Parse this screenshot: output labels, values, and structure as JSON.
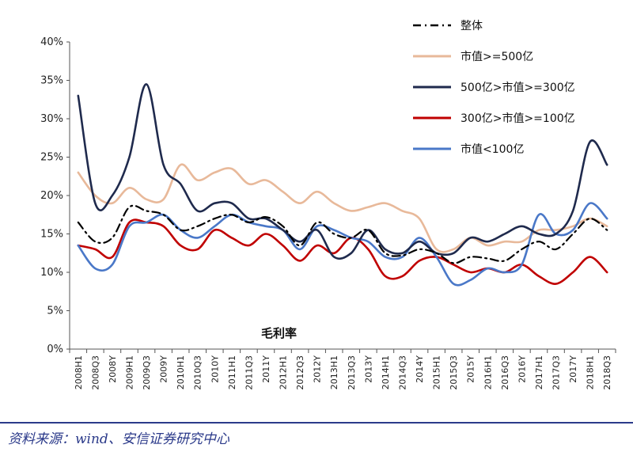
{
  "chart_data": {
    "type": "line",
    "title": "",
    "annotation": "毛利率",
    "xlabel": "",
    "ylabel": "",
    "ylim": [
      0,
      40
    ],
    "yticks": [
      "0%",
      "5%",
      "10%",
      "15%",
      "20%",
      "25%",
      "30%",
      "35%",
      "40%"
    ],
    "grid": false,
    "legend_position": "top-right",
    "categories": [
      "2008H1",
      "2008Q3",
      "2008Y",
      "2009H1",
      "2009Q3",
      "2009Y",
      "2010H1",
      "2010Q3",
      "2010Y",
      "2011H1",
      "2011Q3",
      "2011Y",
      "2012H1",
      "2012Q3",
      "2012Y",
      "2013H1",
      "2013Q3",
      "2013Y",
      "2014H1",
      "2014Q3",
      "2014Y",
      "2015H1",
      "2015Q3",
      "2015Y",
      "2016H1",
      "2016Q3",
      "2016Y",
      "2017H1",
      "2017Q3",
      "2017Y",
      "2018H1",
      "2018Q3"
    ],
    "series": [
      {
        "name": "整体",
        "color": "#000000",
        "style": "dashdot",
        "values": [
          16.5,
          14.0,
          14.5,
          18.5,
          18.0,
          17.5,
          15.5,
          16.0,
          17.0,
          17.5,
          16.5,
          17.2,
          16.0,
          13.5,
          16.5,
          15.0,
          14.5,
          15.5,
          12.5,
          12.2,
          13.0,
          12.5,
          11.2,
          12.0,
          11.8,
          11.5,
          13.0,
          14.0,
          13.0,
          15.0,
          17.0,
          15.5
        ]
      },
      {
        "name": "市值>=500亿",
        "color": "#e8b99a",
        "style": "solid",
        "values": [
          23.0,
          20.0,
          19.0,
          21.0,
          19.5,
          19.5,
          24.0,
          22.0,
          23.0,
          23.5,
          21.5,
          22.0,
          20.5,
          19.0,
          20.5,
          19.0,
          18.0,
          18.5,
          19.0,
          18.0,
          17.0,
          13.0,
          13.0,
          14.5,
          13.5,
          14.0,
          14.0,
          15.5,
          15.5,
          16.0,
          17.0,
          16.0
        ]
      },
      {
        "name": "500亿>市值>=300亿",
        "color": "#1f2a4d",
        "style": "solid",
        "values": [
          33.0,
          19.0,
          20.0,
          25.0,
          34.5,
          24.0,
          21.5,
          18.0,
          19.0,
          19.0,
          17.0,
          17.0,
          15.5,
          14.0,
          15.5,
          12.0,
          12.5,
          15.5,
          13.0,
          12.5,
          14.0,
          12.5,
          12.5,
          14.5,
          14.0,
          15.0,
          16.0,
          15.0,
          15.0,
          18.0,
          27.0,
          24.0
        ]
      },
      {
        "name": "300亿>市值>=100亿",
        "color": "#c00000",
        "style": "solid",
        "values": [
          13.5,
          13.0,
          12.0,
          16.5,
          16.5,
          16.0,
          13.5,
          13.0,
          15.5,
          14.5,
          13.5,
          15.0,
          13.5,
          11.5,
          13.5,
          12.5,
          14.5,
          13.0,
          9.5,
          9.5,
          11.5,
          12.0,
          11.0,
          10.0,
          10.5,
          10.0,
          11.0,
          9.5,
          8.5,
          10.0,
          12.0,
          10.0
        ]
      },
      {
        "name": "市值<100亿",
        "color": "#4a78c8",
        "style": "solid",
        "values": [
          13.5,
          10.5,
          11.0,
          16.0,
          16.5,
          17.5,
          15.5,
          14.5,
          16.0,
          17.5,
          16.5,
          16.0,
          15.5,
          13.0,
          16.0,
          15.5,
          14.5,
          14.0,
          12.0,
          12.0,
          14.5,
          12.0,
          8.5,
          9.0,
          10.5,
          10.0,
          11.0,
          17.5,
          15.0,
          15.5,
          19.0,
          17.0
        ]
      }
    ]
  },
  "source_text": "资料来源：wind、安信证券研究中心"
}
